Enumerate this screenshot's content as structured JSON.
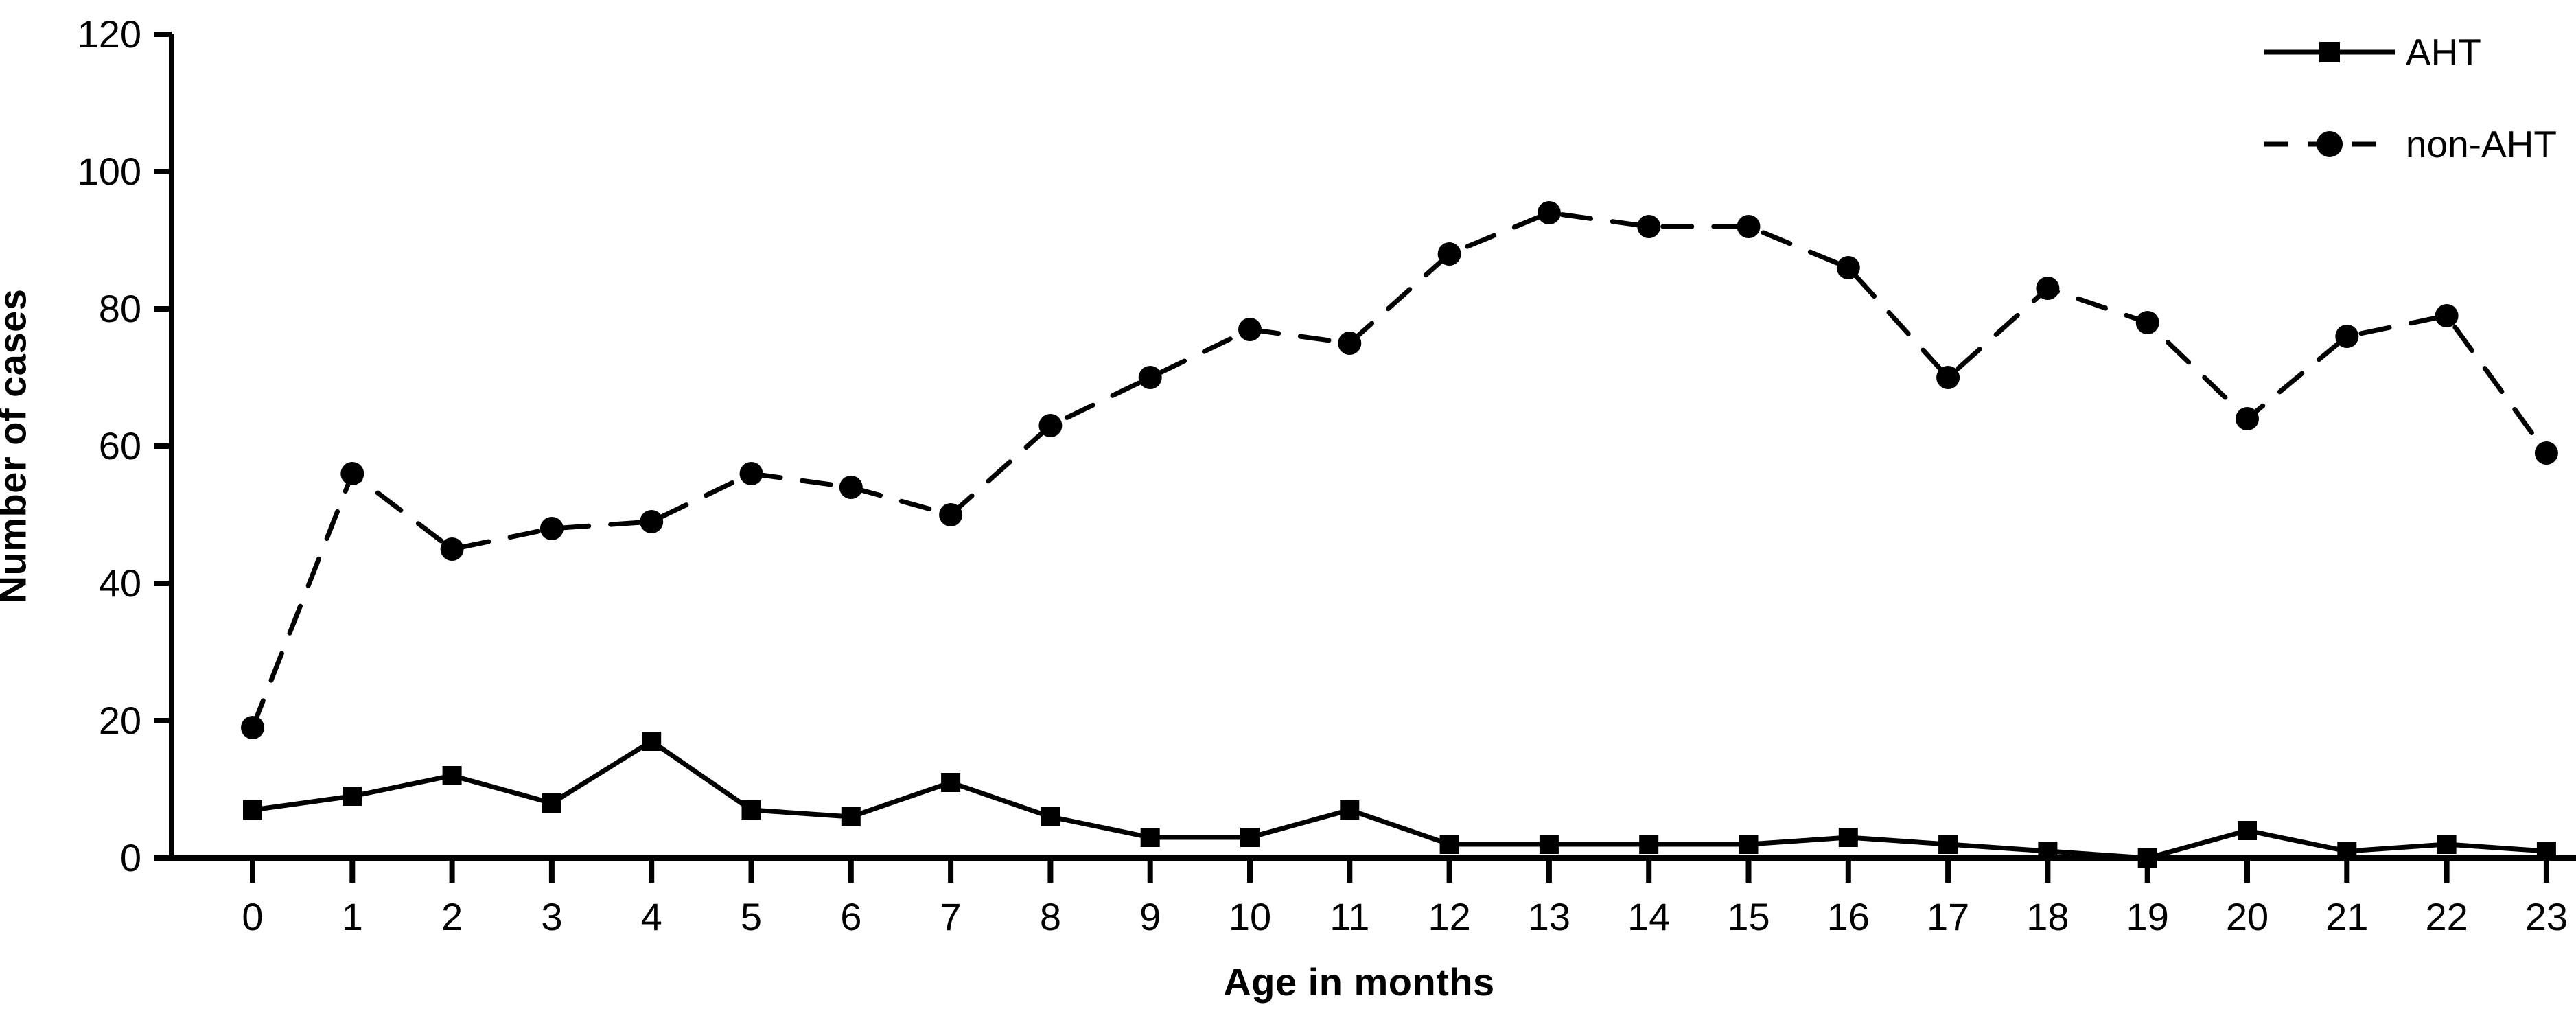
{
  "figure": {
    "background_color": "#ffffff",
    "ink_color": "#000000"
  },
  "chart_data": {
    "type": "line",
    "title": "",
    "xlabel": "Age in months",
    "ylabel": "Number of cases",
    "x": [
      0,
      1,
      2,
      3,
      4,
      5,
      6,
      7,
      8,
      9,
      10,
      11,
      12,
      13,
      14,
      15,
      16,
      17,
      18,
      19,
      20,
      21,
      22,
      23
    ],
    "series": [
      {
        "name": "AHT",
        "marker": "square",
        "line_style": "solid",
        "color": "#000000",
        "values": [
          7,
          9,
          12,
          8,
          17,
          7,
          6,
          11,
          6,
          3,
          3,
          7,
          2,
          2,
          2,
          2,
          3,
          2,
          1,
          0,
          4,
          1,
          2,
          1
        ]
      },
      {
        "name": "non-AHT",
        "marker": "circle",
        "line_style": "dashed",
        "color": "#000000",
        "values": [
          19,
          56,
          45,
          48,
          49,
          56,
          54,
          50,
          63,
          70,
          77,
          75,
          88,
          94,
          92,
          92,
          86,
          70,
          83,
          78,
          64,
          76,
          79,
          59
        ]
      }
    ],
    "ylim": [
      0,
      120
    ],
    "yticks": [
      0,
      20,
      40,
      60,
      80,
      100,
      120
    ],
    "grid": false,
    "legend_position": "top-right"
  }
}
